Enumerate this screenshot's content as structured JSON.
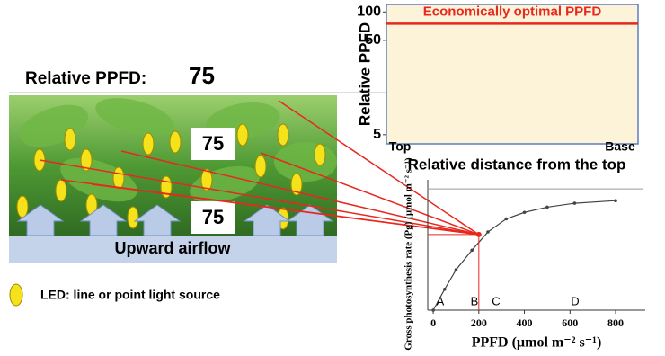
{
  "header": {
    "label": "Relative PPFD:",
    "value": "75"
  },
  "photo": {
    "labels": [
      "75",
      "75"
    ],
    "airflow": "Upward airflow"
  },
  "legend": {
    "led": "LED: line or point light source"
  },
  "chart_data": [
    {
      "type": "line",
      "ylabel": "Relative PPFD",
      "xlabel": "Relative distance from the top",
      "categories": [
        "Top",
        "Base"
      ],
      "series": [
        {
          "name": "Economically optimal PPFD",
          "color": "#e8281e",
          "values": [
            75,
            75
          ]
        }
      ],
      "ylim": [
        4,
        120
      ],
      "yticks": [
        5,
        50,
        100
      ],
      "log_scale": true,
      "background": "#fcf3d8",
      "border": "#5b7fbf"
    },
    {
      "type": "scatter",
      "ylabel": "Gross photosynthesis rate (Pg) (µmol m⁻² s⁻¹)",
      "xlabel": "PPFD (µmol m⁻² s⁻¹)",
      "x": [
        0,
        50,
        100,
        170,
        240,
        320,
        400,
        500,
        620,
        800
      ],
      "values": [
        0,
        16,
        31,
        46,
        60,
        70,
        75,
        79,
        82,
        84
      ],
      "color": "#444444",
      "plateau": 93,
      "highlight": {
        "x": 200,
        "y": 58,
        "color": "#e8281e"
      },
      "regions": [
        "A",
        "B",
        "C",
        "D"
      ],
      "xlim": [
        -24,
        930
      ],
      "ylim": [
        0,
        100
      ],
      "xticks": [
        0,
        200,
        400,
        600,
        800
      ]
    }
  ]
}
